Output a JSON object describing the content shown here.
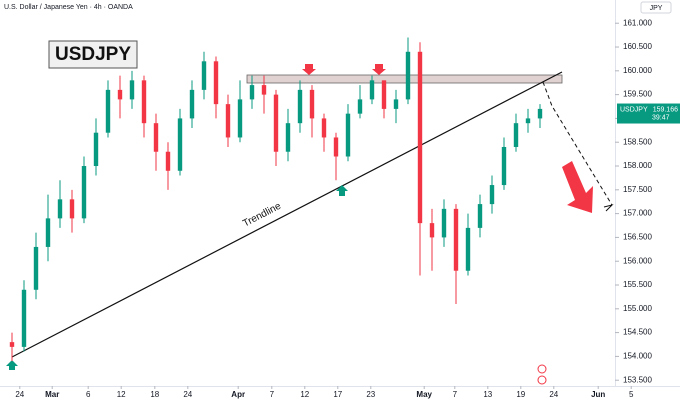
{
  "chart_data": {
    "type": "candlestick",
    "title": "U.S. Dollar / Japanese Yen · 4h · OANDA",
    "symbol": "USDJPY",
    "currency": "JPY",
    "annotations": [
      "Trendline"
    ],
    "price_tag": {
      "symbol": "USDJPY",
      "value": 159.166,
      "countdown": "39:47"
    },
    "x": [
      2,
      4,
      6,
      8,
      10,
      12,
      14,
      16,
      18,
      20,
      22,
      24,
      26,
      28,
      30,
      32,
      34,
      36,
      38,
      40,
      42,
      44,
      46,
      48,
      50,
      52,
      54,
      56,
      58,
      60,
      62,
      64,
      66,
      68,
      70,
      72,
      74,
      76,
      78,
      80,
      82,
      84,
      86,
      88,
      90
    ],
    "open": [
      154.3,
      154.2,
      155.4,
      156.3,
      156.9,
      157.3,
      156.9,
      158.0,
      158.7,
      159.6,
      159.4,
      159.8,
      158.9,
      158.3,
      157.9,
      159.0,
      159.6,
      160.2,
      159.3,
      158.6,
      159.4,
      159.7,
      159.5,
      158.3,
      158.9,
      159.6,
      159.0,
      158.6,
      158.2,
      159.1,
      159.4,
      159.8,
      159.2,
      159.4,
      160.4,
      156.8,
      156.5,
      157.1,
      155.8,
      156.7,
      157.2,
      157.6,
      158.4,
      158.9,
      159.0
    ],
    "high": [
      154.5,
      155.6,
      156.6,
      157.4,
      157.7,
      157.5,
      158.2,
      159.0,
      159.8,
      159.9,
      160.0,
      159.9,
      159.1,
      158.5,
      159.2,
      159.8,
      160.4,
      160.3,
      159.5,
      159.8,
      159.9,
      159.9,
      159.6,
      159.2,
      159.8,
      159.7,
      159.1,
      158.7,
      159.3,
      159.7,
      159.9,
      159.8,
      159.6,
      160.7,
      160.6,
      157.1,
      157.3,
      157.2,
      157.0,
      157.4,
      157.8,
      158.6,
      159.1,
      159.2,
      159.3
    ],
    "low": [
      153.9,
      154.1,
      155.2,
      156.0,
      156.7,
      156.6,
      156.8,
      157.8,
      158.6,
      159.0,
      159.2,
      158.6,
      157.9,
      157.5,
      157.8,
      158.8,
      159.4,
      159.0,
      158.4,
      158.5,
      159.2,
      159.1,
      158.0,
      158.1,
      158.7,
      158.6,
      158.3,
      157.7,
      158.1,
      159.0,
      159.3,
      159.0,
      158.9,
      159.3,
      155.7,
      155.8,
      156.3,
      155.1,
      155.7,
      156.5,
      157.0,
      157.5,
      158.3,
      158.7,
      158.8
    ],
    "close": [
      154.2,
      155.4,
      156.3,
      156.9,
      157.3,
      156.9,
      158.0,
      158.7,
      159.6,
      159.4,
      159.8,
      158.9,
      158.3,
      157.9,
      159.0,
      159.6,
      160.2,
      159.3,
      158.6,
      159.4,
      159.7,
      159.5,
      158.3,
      158.9,
      159.6,
      159.0,
      158.6,
      158.2,
      159.1,
      159.4,
      159.8,
      159.2,
      159.4,
      160.4,
      156.8,
      156.5,
      157.1,
      155.8,
      156.7,
      157.2,
      157.6,
      158.4,
      158.9,
      159.0,
      159.2
    ],
    "up_color": "#089981",
    "down_color": "#f23645",
    "xlim": [
      0,
      113
    ],
    "xticks": [
      {
        "value": 3.3,
        "label": "24"
      },
      {
        "value": 8.7,
        "label": "Mar"
      },
      {
        "value": 14.7,
        "label": "6"
      },
      {
        "value": 20.2,
        "label": "12"
      },
      {
        "value": 25.8,
        "label": "18"
      },
      {
        "value": 31.3,
        "label": "24"
      },
      {
        "value": 39.7,
        "label": "Apr"
      },
      {
        "value": 45.3,
        "label": "7"
      },
      {
        "value": 50.8,
        "label": "12"
      },
      {
        "value": 56.3,
        "label": "17"
      },
      {
        "value": 61.8,
        "label": "23"
      },
      {
        "value": 70.7,
        "label": "May"
      },
      {
        "value": 75.8,
        "label": "7"
      },
      {
        "value": 81.3,
        "label": "13"
      },
      {
        "value": 86.8,
        "label": "19"
      },
      {
        "value": 92.3,
        "label": "24"
      },
      {
        "value": 99.7,
        "label": "Jun"
      },
      {
        "value": 105.2,
        "label": "5"
      }
    ],
    "ylim": [
      153.0,
      161.488
    ],
    "yticks": [
      {
        "value": 161,
        "label": "161.000"
      },
      {
        "value": 160.5,
        "label": "160.500"
      },
      {
        "value": 160,
        "label": "160.000"
      },
      {
        "value": 159.5,
        "label": "159.500"
      },
      {
        "value": 159,
        "label": "159.000"
      },
      {
        "value": 158.5,
        "label": "158.500"
      },
      {
        "value": 158,
        "label": "158.000"
      },
      {
        "value": 157.5,
        "label": "157.500"
      },
      {
        "value": 157,
        "label": "157.000"
      },
      {
        "value": 156.5,
        "label": "156.500"
      },
      {
        "value": 156,
        "label": "156.000"
      },
      {
        "value": 155.5,
        "label": "155.500"
      },
      {
        "value": 155,
        "label": "155.000"
      },
      {
        "value": 154.5,
        "label": "154.500"
      },
      {
        "value": 154,
        "label": "154.000"
      },
      {
        "value": 153.5,
        "label": "153.500"
      }
    ],
    "grid": false
  }
}
